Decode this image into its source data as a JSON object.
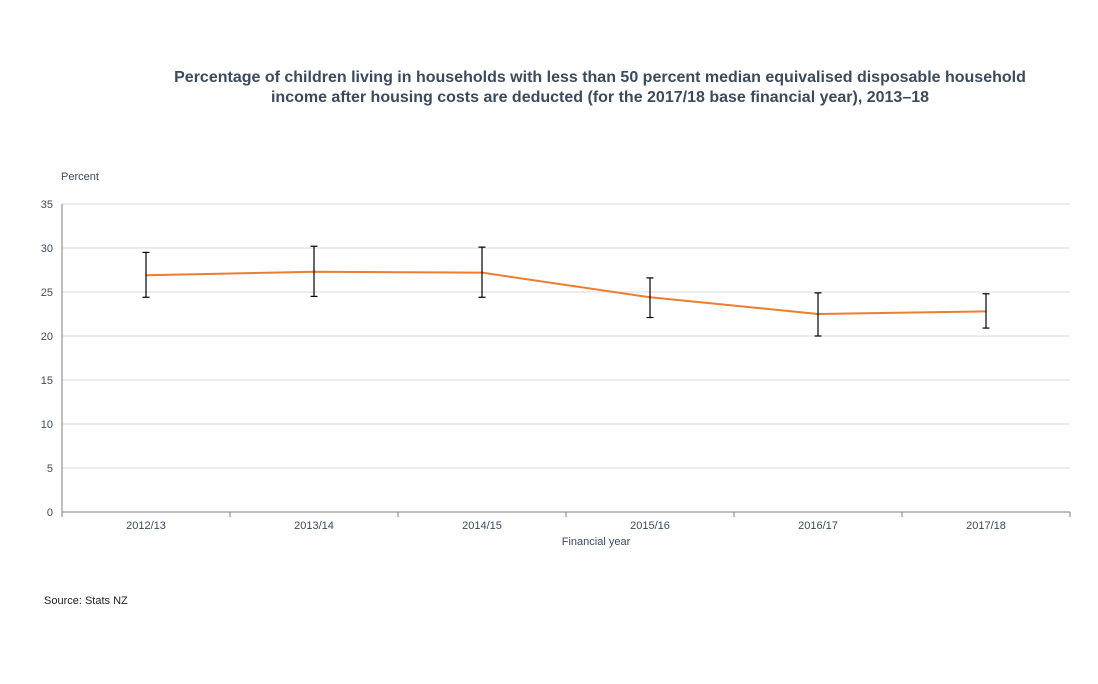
{
  "title_line1": "Percentage of children living in households with less than 50 percent median equivalised disposable household",
  "title_line2": "income after housing costs are deducted (for the 2017/18 base financial year), 2013–18",
  "source": "Source: Stats NZ",
  "colors": {
    "line": "#ed7d31",
    "grid": "#d9d9d9",
    "text": "#3c4a5e",
    "errorbar": "#000000"
  },
  "chart_data": {
    "type": "line",
    "title": "Percentage of children living in households with less than 50 percent median equivalised disposable household income after housing costs are deducted (for the 2017/18 base financial year), 2013–18",
    "xlabel": "Financial year",
    "ylabel": "Percent",
    "ylim": [
      0,
      35
    ],
    "yticks": [
      0,
      5,
      10,
      15,
      20,
      25,
      30,
      35
    ],
    "grid": true,
    "categories": [
      "2012/13",
      "2013/14",
      "2014/15",
      "2015/16",
      "2016/17",
      "2017/18"
    ],
    "series": [
      {
        "values": [
          26.9,
          27.3,
          27.2,
          24.4,
          22.5,
          22.8
        ],
        "error_low": [
          24.4,
          24.5,
          24.4,
          22.1,
          20.0,
          20.9
        ],
        "error_high": [
          29.5,
          30.2,
          30.1,
          26.6,
          24.9,
          24.8
        ]
      }
    ]
  }
}
